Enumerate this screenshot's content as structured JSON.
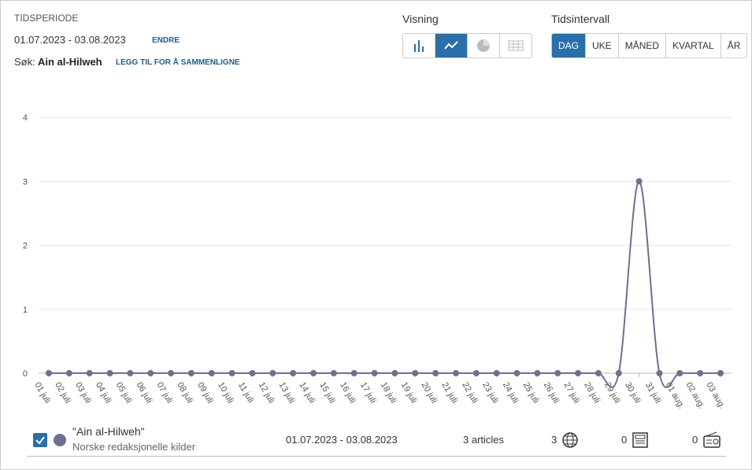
{
  "header": {
    "period_label": "TIDSPERIODE",
    "period": "01.07.2023 - 03.08.2023",
    "change": "ENDRE",
    "search_label": "Søk:",
    "search_term": "Ain al-Hilweh",
    "compare": "LEGG TIL FOR Å SAMMENLIGNE",
    "view_label": "Visning",
    "interval_label": "Tidsintervall",
    "intervals": [
      "DAG",
      "UKE",
      "MÅNED",
      "KVARTAL",
      "ÅR"
    ]
  },
  "chart_data": {
    "type": "line",
    "categories": [
      "01 juli",
      "02 juli",
      "03 juli",
      "04 juli",
      "05 juli",
      "06 juli",
      "07 juli",
      "08 juli",
      "09 juli",
      "10 juli",
      "11 juli",
      "12 juli",
      "13 juli",
      "14 juli",
      "15 juli",
      "16 juli",
      "17 juli",
      "18 juli",
      "19 juli",
      "20 juli",
      "21 juli",
      "22 juli",
      "23 juli",
      "24 juli",
      "25 juli",
      "26 juli",
      "27 juli",
      "28 juli",
      "29 juli",
      "30 juli",
      "31 juli",
      "01 aug.",
      "02 aug.",
      "03 aug."
    ],
    "series": [
      {
        "name": "\"Ain al-Hilweh\"",
        "color": "#6b7190",
        "values": [
          0,
          0,
          0,
          0,
          0,
          0,
          0,
          0,
          0,
          0,
          0,
          0,
          0,
          0,
          0,
          0,
          0,
          0,
          0,
          0,
          0,
          0,
          0,
          0,
          0,
          0,
          0,
          0,
          0,
          3,
          0,
          0,
          0,
          0
        ]
      }
    ],
    "ylim": [
      0,
      4
    ],
    "yticks": [
      0,
      1,
      2,
      3,
      4
    ],
    "grid": true
  },
  "legend_row": {
    "source": "Norske redaksjonelle kilder",
    "period": "01.07.2023 - 03.08.2023",
    "articles": "3 articles",
    "counts": [
      3,
      0,
      0
    ]
  }
}
